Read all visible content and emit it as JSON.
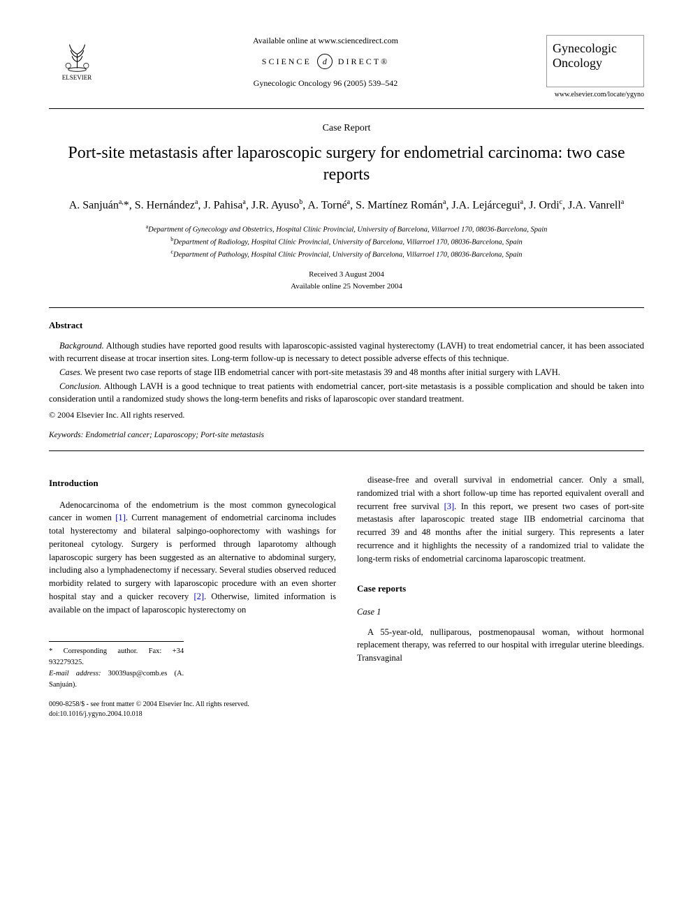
{
  "header": {
    "publisher_name": "ELSEVIER",
    "available_line": "Available online at www.sciencedirect.com",
    "sd_left": "SCIENCE",
    "sd_d": "d",
    "sd_right": "DIRECT®",
    "citation": "Gynecologic Oncology 96 (2005) 539–542",
    "journal_title": "Gynecologic Oncology",
    "journal_url": "www.elsevier.com/locate/ygyno"
  },
  "article": {
    "type": "Case Report",
    "title": "Port-site metastasis after laparoscopic surgery for endometrial carcinoma: two case reports",
    "authors_html": "A. Sanjuán<sup>a,</sup>*, S. Hernández<sup>a</sup>, J. Pahisa<sup>a</sup>, J.R. Ayuso<sup>b</sup>, A. Torné<sup>a</sup>, S. Martínez Román<sup>a</sup>, J.A. Lejárcegui<sup>a</sup>, J. Ordi<sup>c</sup>, J.A. Vanrell<sup>a</sup>",
    "affiliations": [
      {
        "sup": "a",
        "text": "Department of Gynecology and Obstetrics, Hospital Clínic Provincial, University of Barcelona, Villarroel 170, 08036-Barcelona, Spain"
      },
      {
        "sup": "b",
        "text": "Department of Radiology, Hospital Clínic Provincial, University of Barcelona, Villarroel 170, 08036-Barcelona, Spain"
      },
      {
        "sup": "c",
        "text": "Department of Pathology, Hospital Clínic Provincial, University of Barcelona, Villarroel 170, 08036-Barcelona, Spain"
      }
    ],
    "received": "Received 3 August 2004",
    "available": "Available online 25 November 2004"
  },
  "abstract": {
    "heading": "Abstract",
    "background_label": "Background.",
    "background_text": " Although studies have reported good results with laparoscopic-assisted vaginal hysterectomy (LAVH) to treat endometrial cancer, it has been associated with recurrent disease at trocar insertion sites. Long-term follow-up is necessary to detect possible adverse effects of this technique.",
    "cases_label": "Cases.",
    "cases_text": " We present two case reports of stage IIB endometrial cancer with port-site metastasis 39 and 48 months after initial surgery with LAVH.",
    "conclusion_label": "Conclusion.",
    "conclusion_text": " Although LAVH is a good technique to treat patients with endometrial cancer, port-site metastasis is a possible complication and should be taken into consideration until a randomized study shows the long-term benefits and risks of laparoscopic over standard treatment.",
    "copyright": "© 2004 Elsevier Inc. All rights reserved.",
    "keywords_label": "Keywords:",
    "keywords_text": " Endometrial cancer; Laparoscopy; Port-site metastasis"
  },
  "body": {
    "intro_heading": "Introduction",
    "intro_col1": "Adenocarcinoma of the endometrium is the most common gynecological cancer in women [1]. Current management of endometrial carcinoma includes total hysterectomy and bilateral salpingo-oophorectomy with washings for peritoneal cytology. Surgery is performed through laparotomy although laparoscopic surgery has been suggested as an alternative to abdominal surgery, including also a lymphadenectomy if necessary. Several studies observed reduced morbidity related to surgery with laparoscopic procedure with an even shorter hospital stay and a quicker recovery [2]. Otherwise, limited information is available on the impact of laparoscopic hysterectomy on",
    "ref1": "[1]",
    "ref2": "[2]",
    "intro_col2": "disease-free and overall survival in endometrial cancer. Only a small, randomized trial with a short follow-up time has reported equivalent overall and recurrent free survival [3]. In this report, we present two cases of port-site metastasis after laparoscopic treated stage IIB endometrial carcinoma that recurred 39 and 48 months after the initial surgery. This represents a later recurrence and it highlights the necessity of a randomized trial to validate the long-term risks of endometrial carcinoma laparoscopic treatment.",
    "ref3": "[3]",
    "case_reports_heading": "Case reports",
    "case1_label": "Case 1",
    "case1_text": "A 55-year-old, nulliparous, postmenopausal woman, without hormonal replacement therapy, was referred to our hospital with irregular uterine bleedings. Transvaginal"
  },
  "footnotes": {
    "corr": "* Corresponding author. Fax: +34 932279325.",
    "email_label": "E-mail address:",
    "email_value": " 30039asp@comb.es (A. Sanjuán)."
  },
  "footer": {
    "line1": "0090-8258/$ - see front matter © 2004 Elsevier Inc. All rights reserved.",
    "line2": "doi:10.1016/j.ygyno.2004.10.018"
  },
  "colors": {
    "text": "#000000",
    "background": "#ffffff",
    "link": "#0000cc",
    "rule": "#000000"
  }
}
